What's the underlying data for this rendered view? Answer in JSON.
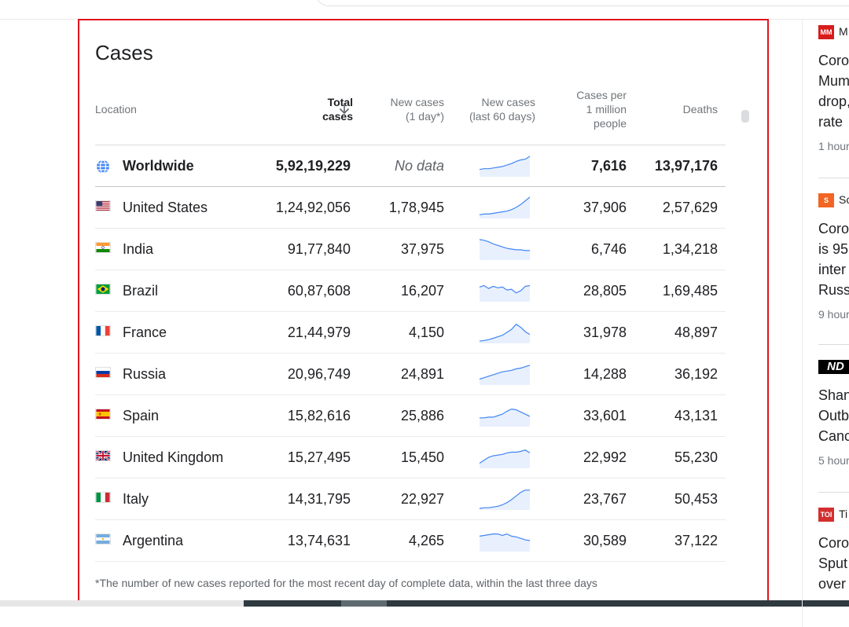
{
  "card": {
    "title": "Cases",
    "columns": {
      "location": "Location",
      "total_cases_l1": "Total",
      "total_cases_l2": "cases",
      "new_cases_l1": "New cases",
      "new_cases_l2": "(1 day*)",
      "new60_l1": "New cases",
      "new60_l2": "(last 60 days)",
      "permil_l1": "Cases per",
      "permil_l2": "1 million",
      "permil_l3": "people",
      "deaths": "Deaths"
    },
    "sort_icon": "arrow-down-icon",
    "rows": [
      {
        "name": "Worldwide",
        "icon": "globe-icon",
        "total": "5,92,19,229",
        "new1": "No data",
        "permil": "7,616",
        "deaths": "13,97,176",
        "trend": [
          10,
          11,
          11,
          12,
          13,
          14,
          16,
          18,
          21,
          23,
          24,
          28
        ]
      },
      {
        "name": "United States",
        "icon": "us-flag-icon",
        "total": "1,24,92,056",
        "new1": "1,78,945",
        "permil": "37,906",
        "deaths": "2,57,629",
        "trend": [
          5,
          6,
          6,
          7,
          8,
          9,
          10,
          12,
          15,
          19,
          24,
          29
        ]
      },
      {
        "name": "India",
        "icon": "india-flag-icon",
        "total": "91,77,840",
        "new1": "37,975",
        "permil": "6,746",
        "deaths": "1,34,218",
        "trend": [
          28,
          27,
          25,
          22,
          20,
          18,
          16,
          15,
          14,
          14,
          13,
          13
        ]
      },
      {
        "name": "Brazil",
        "icon": "brazil-flag-icon",
        "total": "60,87,608",
        "new1": "16,207",
        "permil": "28,805",
        "deaths": "1,69,485",
        "trend": [
          20,
          22,
          18,
          21,
          19,
          20,
          16,
          17,
          12,
          15,
          21,
          22
        ]
      },
      {
        "name": "France",
        "icon": "france-flag-icon",
        "total": "21,44,979",
        "new1": "4,150",
        "permil": "31,978",
        "deaths": "48,897",
        "trend": [
          3,
          4,
          5,
          7,
          9,
          11,
          15,
          19,
          26,
          22,
          16,
          12
        ]
      },
      {
        "name": "Russia",
        "icon": "russia-flag-icon",
        "total": "20,96,749",
        "new1": "24,891",
        "permil": "14,288",
        "deaths": "36,192",
        "trend": [
          8,
          10,
          12,
          14,
          16,
          18,
          19,
          20,
          22,
          23,
          25,
          27
        ]
      },
      {
        "name": "Spain",
        "icon": "spain-flag-icon",
        "total": "15,82,616",
        "new1": "25,886",
        "permil": "33,601",
        "deaths": "43,131",
        "trend": [
          12,
          12,
          13,
          13,
          15,
          17,
          21,
          24,
          23,
          20,
          17,
          14
        ]
      },
      {
        "name": "United Kingdom",
        "icon": "uk-flag-icon",
        "total": "15,27,495",
        "new1": "15,450",
        "permil": "22,992",
        "deaths": "55,230",
        "trend": [
          7,
          11,
          15,
          17,
          18,
          19,
          21,
          22,
          22,
          23,
          25,
          21
        ]
      },
      {
        "name": "Italy",
        "icon": "italy-flag-icon",
        "total": "14,31,795",
        "new1": "22,927",
        "permil": "23,767",
        "deaths": "50,453",
        "trend": [
          2,
          3,
          3,
          4,
          5,
          7,
          10,
          14,
          19,
          24,
          27,
          27
        ]
      },
      {
        "name": "Argentina",
        "icon": "argentina-flag-icon",
        "total": "13,74,631",
        "new1": "4,265",
        "permil": "30,589",
        "deaths": "37,122",
        "trend": [
          21,
          22,
          23,
          24,
          24,
          22,
          24,
          21,
          20,
          18,
          16,
          15
        ]
      }
    ],
    "footnote": "*The number of new cases reported for the most recent day of complete data, within the last three days"
  },
  "news": [
    {
      "source": "M",
      "logo": "MM",
      "logo_color": "#d81b1b",
      "headline": [
        "Coro",
        "Mum",
        "drop,",
        "rate"
      ],
      "time": "1 hour"
    },
    {
      "source": "Sc",
      "logo": "S",
      "logo_color": "#f26522",
      "headline": [
        "Coro",
        "is 95",
        "inter",
        "Russ"
      ],
      "time": "9 hour"
    },
    {
      "source": "",
      "logo": "ND",
      "logo_color": "#000000",
      "headline": [
        "Shan",
        "Outb",
        "Canc"
      ],
      "time": "5 hour"
    },
    {
      "source": "Ti",
      "logo": "TOI",
      "logo_color": "#d32f2f",
      "headline": [
        "Coro",
        "Sput",
        "over"
      ],
      "time": ""
    }
  ],
  "colors": {
    "accent_blue": "#4285f4",
    "spark_fill": "#e8f0fe",
    "selection_border": "#e0141e"
  }
}
